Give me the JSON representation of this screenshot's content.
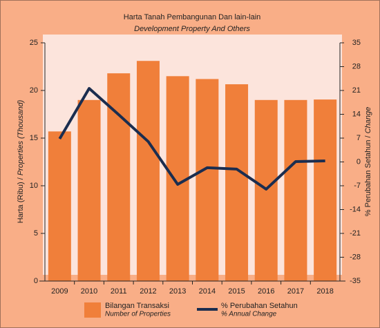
{
  "chart_data": {
    "type": "bar_line",
    "title": "Harta Tanah Pembangunan Dan lain-lain",
    "subtitle": "Development Property And Others",
    "y_label": "Harta (Ribu) /",
    "y_label_en": "Properties (Thousand)",
    "y2_label": "% Perubahan Setahun /",
    "y2_label_en": "Change",
    "categories": [
      "2009",
      "2010",
      "2011",
      "2012",
      "2013",
      "2014",
      "2015",
      "2016",
      "2017",
      "2018"
    ],
    "series": [
      {
        "name": "Bilangan Transaksi",
        "subname": "Number of Properties",
        "type": "bar",
        "color": "#f07f3a",
        "values": [
          15.7,
          19.0,
          21.8,
          23.1,
          21.5,
          21.2,
          20.65,
          19.0,
          19.0,
          19.05
        ]
      },
      {
        "name": "% Perubahan Setahun",
        "subname": "% Annual Change",
        "type": "line",
        "axis": "y2",
        "color": "#1b2d4f",
        "values": [
          6.8,
          21.6,
          13.9,
          6.0,
          -6.6,
          -1.7,
          -2.1,
          -8.0,
          0.1,
          0.3
        ]
      }
    ],
    "ylim": [
      0,
      25
    ],
    "yticks": [
      0,
      5,
      10,
      15,
      20,
      25
    ],
    "y2lim": [
      -35,
      35
    ],
    "y2ticks": [
      -35,
      -28,
      -21,
      -14,
      -7,
      0,
      7,
      14,
      21,
      28,
      35
    ]
  }
}
